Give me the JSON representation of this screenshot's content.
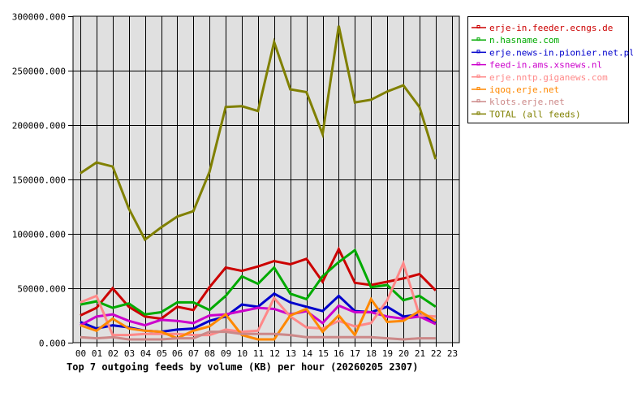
{
  "chart_data": {
    "type": "line",
    "title": "Top 7 outgoing feeds by volume (KB) per hour (20260205 2307)",
    "xlabel": "",
    "ylabel": "",
    "ylim": [
      0,
      300000
    ],
    "y_ticks": [
      "0.000",
      "50000.000",
      "100000.000",
      "150000.000",
      "200000.000",
      "250000.000",
      "300000.000"
    ],
    "y_tick_values": [
      0,
      50000,
      100000,
      150000,
      200000,
      250000,
      300000
    ],
    "categories": [
      "00",
      "01",
      "02",
      "03",
      "04",
      "05",
      "06",
      "07",
      "08",
      "09",
      "10",
      "11",
      "12",
      "13",
      "14",
      "15",
      "16",
      "17",
      "18",
      "19",
      "20",
      "21",
      "22",
      "23"
    ],
    "grid": true,
    "legend_position": "right",
    "plot_background": "#e0e0e0",
    "series": [
      {
        "name": "erje-in.feeder.ecngs.de",
        "color": "#cc0000",
        "values": [
          25000,
          32000,
          50000,
          33000,
          24000,
          22000,
          33000,
          30000,
          51000,
          69000,
          66000,
          70000,
          75000,
          72000,
          77000,
          56000,
          86000,
          55000,
          53000,
          56000,
          59000,
          63000,
          48000
        ]
      },
      {
        "name": "n.hasname.com",
        "color": "#00aa00",
        "values": [
          35000,
          38000,
          32000,
          36000,
          26000,
          28000,
          37000,
          37000,
          30000,
          43000,
          61000,
          54000,
          69000,
          45000,
          40000,
          61000,
          74000,
          85000,
          51000,
          53000,
          39000,
          43000,
          33000
        ]
      },
      {
        "name": "erje.news-in.pionier.net.pl",
        "color": "#0000cc",
        "values": [
          19000,
          13000,
          16000,
          14000,
          11000,
          10000,
          12000,
          13000,
          20000,
          24000,
          35000,
          33000,
          45000,
          37000,
          33000,
          29000,
          43000,
          29000,
          28000,
          33000,
          24000,
          26000,
          18000
        ]
      },
      {
        "name": "feed-in.ams.xsnews.nl",
        "color": "#cc00cc",
        "values": [
          16000,
          24000,
          26000,
          20000,
          16000,
          21000,
          20000,
          18000,
          25000,
          26000,
          29000,
          32000,
          31000,
          26000,
          29000,
          18000,
          34000,
          28000,
          28000,
          24000,
          22000,
          24000,
          17000
        ]
      },
      {
        "name": "erje.nntp.giganews.com",
        "color": "#ff8888",
        "values": [
          37000,
          43000,
          7000,
          7000,
          8000,
          8000,
          8000,
          7000,
          7000,
          12000,
          10000,
          11000,
          41000,
          24000,
          14000,
          13000,
          20000,
          15000,
          18000,
          39000,
          73000,
          25000,
          24000
        ]
      },
      {
        "name": "iqoq.erje.net",
        "color": "#ff8800",
        "values": [
          16000,
          11000,
          22000,
          13000,
          11000,
          10000,
          4000,
          11000,
          15000,
          26000,
          7000,
          3000,
          3000,
          25000,
          31000,
          10000,
          25000,
          7000,
          40000,
          19000,
          20000,
          29000,
          20000
        ]
      },
      {
        "name": "klots.erje.net",
        "color": "#cc8888",
        "values": [
          5000,
          4000,
          5000,
          3000,
          3000,
          3000,
          4000,
          4000,
          10000,
          10000,
          8000,
          8000,
          8000,
          7000,
          5000,
          5000,
          5000,
          5000,
          5000,
          4000,
          3000,
          4000,
          4000
        ]
      },
      {
        "name": "TOTAL (all feeds)",
        "color": "#808000",
        "values": [
          155700,
          165600,
          161900,
          123300,
          94700,
          105900,
          115900,
          120900,
          157000,
          216600,
          217300,
          212900,
          276300,
          232800,
          230300,
          191700,
          291200,
          220800,
          223300,
          230800,
          236500,
          216600,
          168600
        ]
      }
    ]
  }
}
